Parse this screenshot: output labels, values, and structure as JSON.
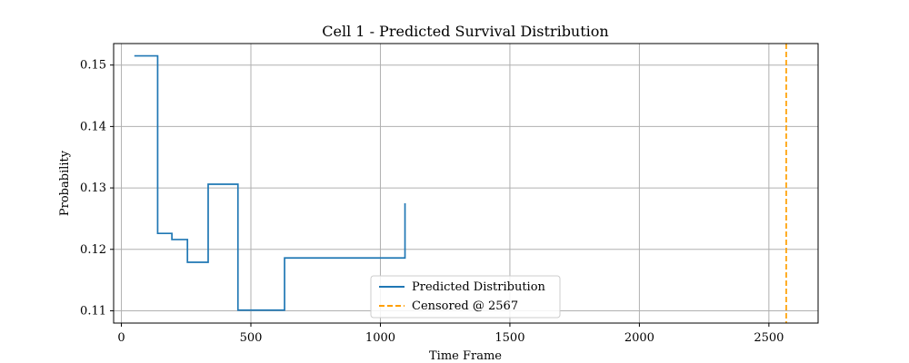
{
  "chart_data": {
    "type": "line",
    "title": "Cell 1 - Predicted Survival Distribution",
    "xlabel": "Time Frame",
    "ylabel": "Probability",
    "xlim": [
      -30,
      2690
    ],
    "ylim": [
      0.108,
      0.1535
    ],
    "xticks": [
      0,
      500,
      1000,
      1500,
      2000,
      2500
    ],
    "yticks": [
      0.11,
      0.12,
      0.13,
      0.14,
      0.15
    ],
    "ytick_labels": [
      "0.11",
      "0.12",
      "0.13",
      "0.14",
      "0.15"
    ],
    "grid": true,
    "legend_position": "lower-center",
    "series": [
      {
        "name": "Predicted Distribution",
        "color": "#1f77b4",
        "step": true,
        "x": [
          50,
          140,
          195,
          255,
          335,
          450,
          630,
          1095
        ],
        "y": [
          0.1515,
          0.1226,
          0.1216,
          0.1179,
          0.1306,
          0.1101,
          0.1186,
          0.1275
        ]
      }
    ],
    "vlines": [
      {
        "name": "Censored @ 2567",
        "x": 2567,
        "color": "#ff9f00",
        "dashed": true
      }
    ]
  }
}
